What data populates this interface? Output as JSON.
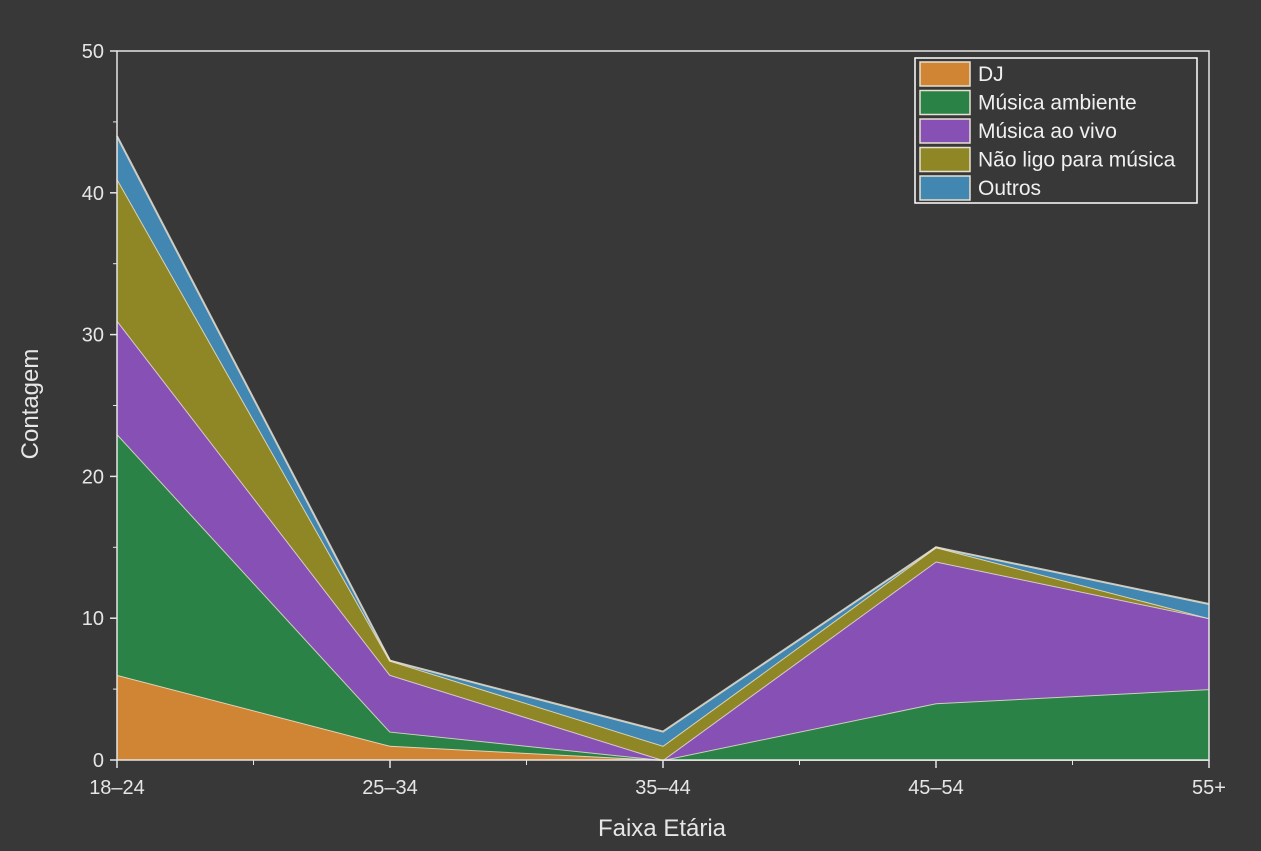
{
  "chart_data": {
    "type": "area",
    "stacked": true,
    "title": "",
    "xlabel": "Faixa Etária",
    "ylabel": "Contagem",
    "categories": [
      "18–24",
      "25–34",
      "35–44",
      "45–54",
      "55+"
    ],
    "ylim": [
      0,
      50
    ],
    "yticks": [
      0,
      10,
      20,
      30,
      40,
      50
    ],
    "grid": false,
    "legend_position": "top-right",
    "series": [
      {
        "name": "DJ",
        "color": "#cf8533",
        "values": [
          6,
          1,
          0,
          0,
          0
        ]
      },
      {
        "name": "Música ambiente",
        "color": "#2a8246",
        "values": [
          17,
          1,
          0,
          4,
          5
        ]
      },
      {
        "name": "Música ao vivo",
        "color": "#8650b4",
        "values": [
          8,
          4,
          0,
          10,
          5
        ]
      },
      {
        "name": "Não ligo para música",
        "color": "#8f8725",
        "values": [
          10,
          1,
          1,
          1,
          0
        ]
      },
      {
        "name": "Outros",
        "color": "#4286b2",
        "values": [
          3,
          0,
          1,
          0,
          1
        ]
      }
    ],
    "edge_color": "#e8e0d0",
    "axis_color": "#e6e6e6"
  }
}
